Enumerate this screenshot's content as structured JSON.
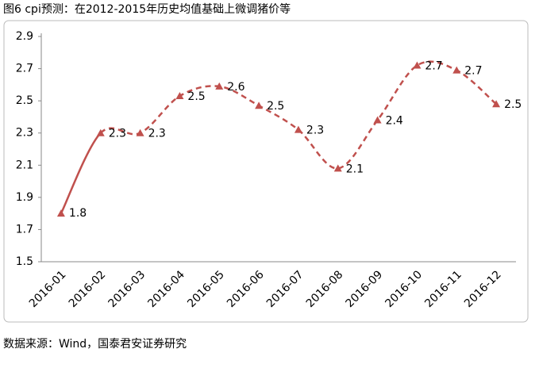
{
  "chart_data": {
    "type": "line",
    "title": "图6 cpi预测：在2012-2015年历史均值基础上微调猪价等",
    "source": "数据来源：Wind，国泰君安证券研究",
    "categories": [
      "2016-01",
      "2016-02",
      "2016-03",
      "2016-04",
      "2016-05",
      "2016-06",
      "2016-07",
      "2016-08",
      "2016-09",
      "2016-10",
      "2016-11",
      "2016-12"
    ],
    "values": [
      1.8,
      2.3,
      2.3,
      2.53,
      2.59,
      2.47,
      2.32,
      2.08,
      2.38,
      2.72,
      2.69,
      2.48
    ],
    "value_labels": [
      "1.8",
      "2.3",
      "2.3",
      "2.5",
      "2.6",
      "2.5",
      "2.3",
      "2.1",
      "2.4",
      "2.7",
      "2.7",
      "2.5"
    ],
    "color": "#c0504d",
    "dashed_from": 1,
    "ylim": [
      1.5,
      2.9
    ],
    "yticks": [
      1.5,
      1.7,
      1.9,
      2.1,
      2.3,
      2.5,
      2.7,
      2.9
    ],
    "grid": false
  }
}
